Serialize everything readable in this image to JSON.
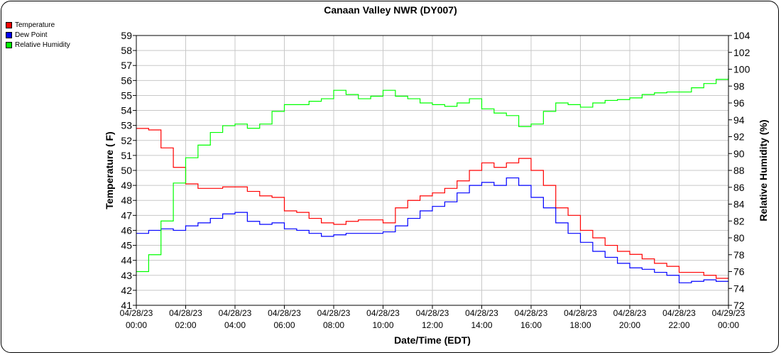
{
  "chart_data": {
    "type": "line",
    "title": "Canaan Valley NWR (DY007)",
    "xlabel": "Date/Time (EDT)",
    "ylabel": "Temperature ( F)",
    "y2label": "Relative Humidity (%)",
    "ylim": [
      41,
      59
    ],
    "y2lim": [
      72,
      104
    ],
    "grid": true,
    "legend_position": "top-left",
    "x_hours": [
      0,
      0.5,
      1,
      1.5,
      2,
      2.5,
      3,
      3.5,
      4,
      4.5,
      5,
      5.5,
      6,
      6.5,
      7,
      7.5,
      8,
      8.5,
      9,
      9.5,
      10,
      10.5,
      11,
      11.5,
      12,
      12.5,
      13,
      13.5,
      14,
      14.5,
      15,
      15.5,
      16,
      16.5,
      17,
      17.5,
      18,
      18.5,
      19,
      19.5,
      20,
      20.5,
      21,
      21.5,
      22,
      22.5,
      23,
      23.5,
      24
    ],
    "x_tick_labels": [
      [
        "04/28/23",
        "00:00"
      ],
      [
        "04/28/23",
        "02:00"
      ],
      [
        "04/28/23",
        "04:00"
      ],
      [
        "04/28/23",
        "06:00"
      ],
      [
        "04/28/23",
        "08:00"
      ],
      [
        "04/28/23",
        "10:00"
      ],
      [
        "04/28/23",
        "12:00"
      ],
      [
        "04/28/23",
        "14:00"
      ],
      [
        "04/28/23",
        "16:00"
      ],
      [
        "04/28/23",
        "18:00"
      ],
      [
        "04/28/23",
        "20:00"
      ],
      [
        "04/28/23",
        "22:00"
      ],
      [
        "04/29/23",
        "00:00"
      ]
    ],
    "y_ticks": [
      41,
      42,
      43,
      44,
      45,
      46,
      47,
      48,
      49,
      50,
      51,
      52,
      53,
      54,
      55,
      56,
      57,
      58,
      59
    ],
    "y2_ticks": [
      72,
      74,
      76,
      78,
      80,
      82,
      84,
      86,
      88,
      90,
      92,
      94,
      96,
      98,
      100,
      102,
      104
    ],
    "series": [
      {
        "name": "Temperature",
        "axis": "left",
        "color": "#ff0000",
        "values": [
          52.8,
          52.7,
          51.5,
          50.2,
          49.1,
          48.8,
          48.8,
          48.9,
          48.9,
          48.6,
          48.3,
          48.2,
          47.3,
          47.2,
          46.8,
          46.5,
          46.4,
          46.6,
          46.7,
          46.7,
          46.5,
          47.5,
          48.0,
          48.3,
          48.5,
          48.8,
          49.3,
          50.0,
          50.5,
          50.2,
          50.5,
          50.8,
          50.0,
          49.0,
          47.5,
          47.0,
          46.0,
          45.5,
          45.0,
          44.6,
          44.4,
          44.1,
          43.8,
          43.6,
          43.2,
          43.2,
          43.0,
          42.8,
          42.8
        ]
      },
      {
        "name": "Dew Point",
        "axis": "left",
        "color": "#0000ff",
        "values": [
          45.8,
          46.0,
          46.1,
          46.0,
          46.3,
          46.5,
          46.8,
          47.1,
          47.2,
          46.6,
          46.4,
          46.5,
          46.1,
          46.0,
          45.8,
          45.6,
          45.7,
          45.8,
          45.8,
          45.8,
          45.9,
          46.3,
          46.8,
          47.3,
          47.6,
          47.9,
          48.5,
          49.0,
          49.2,
          49.0,
          49.5,
          49.0,
          48.2,
          47.5,
          46.5,
          45.8,
          45.2,
          44.6,
          44.2,
          43.8,
          43.5,
          43.4,
          43.2,
          43.0,
          42.5,
          42.6,
          42.7,
          42.6,
          42.6
        ]
      },
      {
        "name": "Relative Humidity",
        "axis": "right",
        "color": "#00ff00",
        "values": [
          76,
          78,
          82,
          86.5,
          89.5,
          91,
          92.5,
          93.3,
          93.5,
          93,
          93.5,
          95,
          95.8,
          95.8,
          96.2,
          96.5,
          97.5,
          97,
          96.5,
          96.8,
          97.5,
          96.8,
          96.5,
          96,
          95.8,
          95.6,
          96,
          96.5,
          95.3,
          94.8,
          94.5,
          93.2,
          93.5,
          95,
          96,
          95.8,
          95.5,
          96,
          96.3,
          96.4,
          96.6,
          97,
          97.2,
          97.3,
          97.3,
          97.8,
          98.3,
          98.8,
          99.3
        ]
      }
    ]
  }
}
